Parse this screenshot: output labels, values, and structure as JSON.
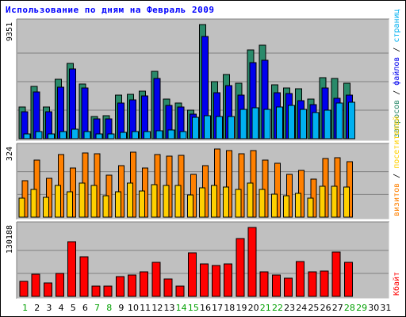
{
  "chart_data": {
    "type": "bar",
    "title": "Использование по дням на Февраль 2009",
    "x": [
      "1",
      "2",
      "3",
      "4",
      "5",
      "6",
      "7",
      "8",
      "9",
      "10",
      "11",
      "12",
      "13",
      "14",
      "15",
      "16",
      "17",
      "18",
      "19",
      "20",
      "21",
      "22",
      "23",
      "24",
      "25",
      "26",
      "27",
      "28",
      "29",
      "30",
      "31"
    ],
    "weekend_days": [
      "1",
      "7",
      "8",
      "14",
      "15",
      "21",
      "22",
      "28",
      "29"
    ],
    "colors": {
      "title": "#0000ff",
      "panel": "#c0c0c0",
      "gridline": "#808080",
      "hits": "#2a8a6a",
      "files": "#0000ee",
      "pages": "#00c0ff",
      "visits": "#ff8000",
      "sites": "#ffe000",
      "kbytes": "#ff0000",
      "weekend_label": "#00a000",
      "weekday_label": "#000000"
    },
    "panels": [
      {
        "name": "requests",
        "ymax_label": "9351",
        "ymax": 9351,
        "legend": [
          {
            "text": "запросов",
            "color": "#2a8a6a"
          },
          {
            "text": " / ",
            "color": "#000000"
          },
          {
            "text": "файлов",
            "color": "#0000ee"
          },
          {
            "text": " / ",
            "color": "#000000"
          },
          {
            "text": "страниц",
            "color": "#00b0f0"
          }
        ],
        "series": [
          {
            "name": "запросов",
            "color": "#2a8a6a",
            "values": [
              2620,
              4300,
              2620,
              4840,
              6200,
              4460,
              1820,
              1870,
              3600,
              3660,
              3900,
              5500,
              3220,
              2940,
              2320,
              9351,
              4690,
              5230,
              4550,
              7290,
              7660,
              4410,
              4130,
              4070,
              3240,
              4980,
              4950,
              4520,
              0,
              0,
              0
            ]
          },
          {
            "name": "файлов",
            "color": "#0000ee",
            "values": [
              2200,
              3840,
              2180,
              4210,
              5700,
              4130,
              1610,
              1640,
              2930,
              3150,
              3500,
              4960,
              2740,
              2610,
              2010,
              8400,
              3790,
              4320,
              3600,
              6240,
              6450,
              3790,
              3670,
              3130,
              2800,
              4140,
              3280,
              3570,
              0,
              0,
              0
            ]
          },
          {
            "name": "страниц",
            "color": "#00b0f0",
            "values": [
              400,
              560,
              400,
              560,
              780,
              590,
              400,
              400,
              520,
              600,
              580,
              630,
              690,
              580,
              1770,
              1860,
              1830,
              1830,
              2400,
              2530,
              2410,
              2600,
              2700,
              2410,
              2150,
              2320,
              2900,
              2970,
              0,
              0,
              0
            ]
          }
        ]
      },
      {
        "name": "visits",
        "ymax_label": "324",
        "ymax": 324,
        "legend": [
          {
            "text": "визитов",
            "color": "#ff8000"
          },
          {
            "text": " / ",
            "color": "#000000"
          },
          {
            "text": "посетителей",
            "color": "#ffd000"
          }
        ],
        "series": [
          {
            "name": "визитов",
            "color": "#ff8000",
            "values": [
              172,
              273,
              185,
              298,
              232,
              307,
              301,
              200,
              246,
              308,
              234,
              297,
              291,
              294,
              205,
              243,
              324,
              318,
              300,
              315,
              272,
              256,
              203,
              221,
              179,
              279,
              282,
              262,
              0,
              0,
              0
            ]
          },
          {
            "name": "посетителей",
            "color": "#ffd000",
            "values": [
              92,
              133,
              94,
              149,
              119,
              162,
              150,
              102,
              122,
              161,
              124,
              156,
              149,
              150,
              104,
              141,
              149,
              144,
              132,
              163,
              133,
              108,
              101,
              112,
              92,
              147,
              146,
              143,
              0,
              0,
              0
            ]
          }
        ]
      },
      {
        "name": "kbytes",
        "ymax_label": "130188",
        "ymax": 130188,
        "legend": [
          {
            "text": "Кбайт",
            "color": "#ff0000"
          }
        ],
        "series": [
          {
            "name": "Кбайт",
            "color": "#ff0000",
            "values": [
              28000,
              42000,
              26000,
              44000,
              103000,
              75000,
              20000,
              20000,
              38000,
              40000,
              47000,
              64000,
              33000,
              20000,
              83000,
              62000,
              58000,
              61000,
              109000,
              130188,
              46000,
              40000,
              34000,
              66000,
              47000,
              48000,
              84000,
              64000,
              0,
              0,
              0
            ]
          }
        ]
      }
    ]
  }
}
